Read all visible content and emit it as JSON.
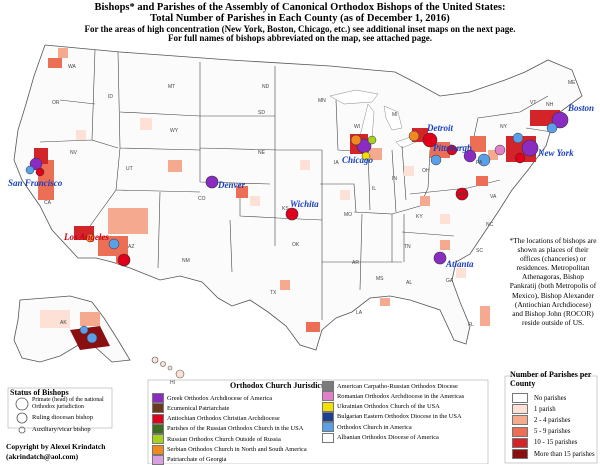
{
  "title_line1": "Bishops* and Parishes of the Assembly of Canonical Orthodox Bishops of the United States:",
  "title_line2": "Total Number of Parishes in Each County (as of December 1, 2016)",
  "subtitle_line1": "For the areas of high concentration (New York, Boston, Chicago, etc.) see additional inset maps on the next page.",
  "subtitle_line2": "For full names of bishops abbreviated on the map, see attached page.",
  "cities": {
    "boston": "Boston",
    "detroit": "Detroit",
    "pittsburgh": "Pittsburgh",
    "newyork": "New York",
    "chicago": "Chicago",
    "denver": "Denver",
    "wichita": "Wichita",
    "sanfrancisco": "San Francisco",
    "losangeles": "Los Angeles",
    "atlanta": "Atlanta"
  },
  "note": "*The locations of bishops are shown as places of their offices (chanceries) or residences. Metropolitan Athenagoras, Bishop Pankratij (both Metropolis of Mexico), Bishop Alexander (Antiochian Archdiocese) and Bishop John (ROCOR) reside outside of US.",
  "status_legend": {
    "heading": "Status of Bishops",
    "primate": "Primate (head) of the national Orthodox jurisdiction",
    "ruling": "Ruling diocesan bishop",
    "auxiliary": "Auxiliary/vicar bishop"
  },
  "copyright": {
    "line1": "Copyright by Alexei Krindatch",
    "line2": "(akrindatch@aol.com)"
  },
  "jurisdiction_legend": {
    "heading": "Orthodox Church Jurisdiction",
    "items": [
      {
        "label": "Greek Orthodox Archdiocese of America",
        "color": "#8a2bc2"
      },
      {
        "label": "Ecumenical Patriarchate",
        "color": "#6b3a1e"
      },
      {
        "label": "Antiochian Orthodox Christian Archdiocese",
        "color": "#e0001b"
      },
      {
        "label": "Parishes of the Russian Orthodox Church in the USA",
        "color": "#3b6e1f"
      },
      {
        "label": "Russian Orthodox Church Outside of Russia",
        "color": "#a8d020"
      },
      {
        "label": "Serbian Orthodox Church in North and South America",
        "color": "#f08a20"
      },
      {
        "label": "Patriarchate of Georgia",
        "color": "#d9a0e0"
      },
      {
        "label": "American Carpatho-Russian Orthodox Diocese",
        "color": "#7b7b7b"
      },
      {
        "label": "Romanian Orthodox Archdiocese in the Americas",
        "color": "#e080c8"
      },
      {
        "label": "Ukrainian Orthodox Church of the USA",
        "color": "#f3e000"
      },
      {
        "label": "Bulgarian Eastern Orthodox Diocese in the USA",
        "color": "#1f3f8f"
      },
      {
        "label": "Orthodox Church in America",
        "color": "#5aa0e8"
      },
      {
        "label": "Albanian Orthodox Diocese of America",
        "color": "#ffffff"
      }
    ]
  },
  "parish_legend": {
    "heading": "Number of Parishes per County",
    "items": [
      {
        "label": "No parishes",
        "color": "#ffffff"
      },
      {
        "label": "1 parish",
        "color": "#fde0d6"
      },
      {
        "label": "2 - 4 parishes",
        "color": "#f5a98f"
      },
      {
        "label": "5 - 9 parishes",
        "color": "#ec6e55"
      },
      {
        "label": "10 - 15 parishes",
        "color": "#d3242a"
      },
      {
        "label": "More than 15 parishes",
        "color": "#8a0f10"
      }
    ]
  },
  "states": [
    "WA",
    "OR",
    "ID",
    "MT",
    "WY",
    "NV",
    "UT",
    "CO",
    "AZ",
    "NM",
    "ND",
    "SD",
    "NE",
    "KS",
    "OK",
    "TX",
    "MN",
    "IA",
    "MO",
    "AR",
    "LA",
    "WI",
    "IL",
    "MS",
    "MI",
    "IN",
    "KY",
    "TN",
    "AL",
    "OH",
    "GA",
    "FL",
    "SC",
    "NC",
    "VA",
    "WV",
    "PA",
    "NY",
    "ME",
    "VT",
    "NH",
    "CA",
    "AK",
    "HI"
  ]
}
